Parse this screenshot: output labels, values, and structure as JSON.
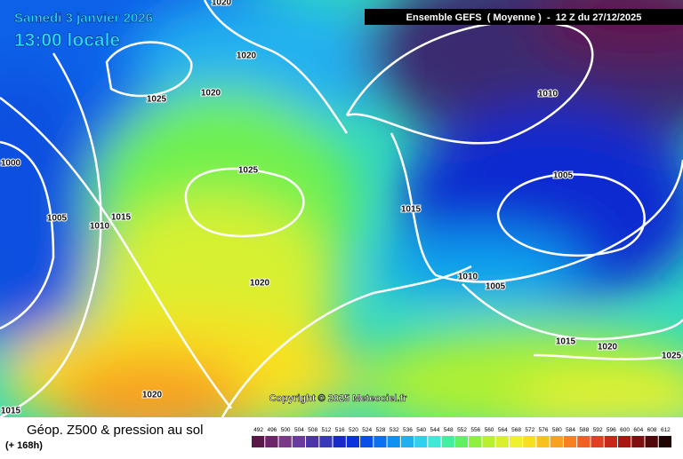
{
  "header": {
    "date": "Samedi 3 janvier 2026",
    "time": "13:00 locale",
    "run": "Ensemble GEFS  ( Moyenne )  -  12 Z du 27/12/2025"
  },
  "isobar_labels": [
    1020,
    1020,
    1025,
    1020,
    1000,
    1025,
    1005,
    1015,
    1010,
    1015,
    1010,
    1005,
    1020,
    1010,
    1005,
    1015,
    1020,
    1025,
    1020,
    1015
  ],
  "copyright": "Copyright © 2025 Meteociel.fr",
  "legend": {
    "title": "Géop. Z500 & pression au sol",
    "lead": "(+ 168h)",
    "values": [
      492,
      496,
      500,
      504,
      508,
      512,
      516,
      520,
      524,
      528,
      532,
      536,
      540,
      544,
      548,
      552,
      556,
      560,
      564,
      568,
      572,
      576,
      580,
      584,
      588,
      592,
      596,
      600,
      604,
      608,
      612
    ],
    "colors": [
      "#5a1848",
      "#6e2468",
      "#7a3a88",
      "#6a3aa0",
      "#4c34a8",
      "#3a3ab8",
      "#1a2ac8",
      "#0a34d8",
      "#0a50e8",
      "#0a70f0",
      "#1090f0",
      "#20b0f0",
      "#30d0f0",
      "#40e8d8",
      "#40f0a0",
      "#60f060",
      "#90f040",
      "#b8f030",
      "#d8f030",
      "#f0f030",
      "#f8e020",
      "#f8c020",
      "#f8a020",
      "#f88020",
      "#f06020",
      "#e04020",
      "#c82818",
      "#a81810",
      "#801010",
      "#500808",
      "#200404"
    ]
  }
}
